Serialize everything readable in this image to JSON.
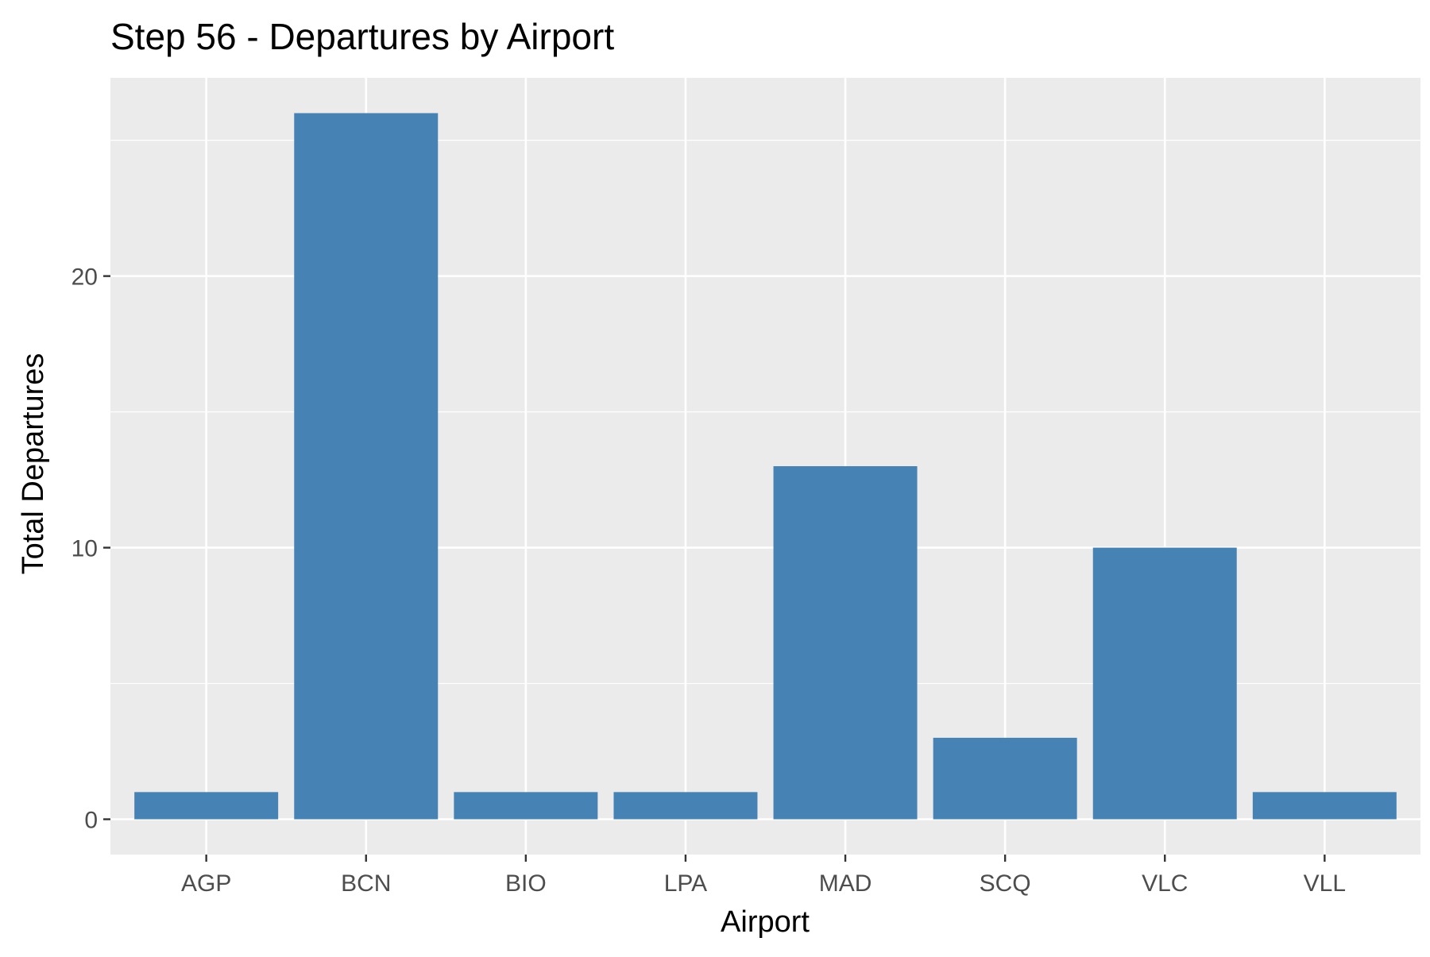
{
  "chart_data": {
    "type": "bar",
    "title": "Step 56 - Departures by Airport",
    "xlabel": "Airport",
    "ylabel": "Total Departures",
    "categories": [
      "AGP",
      "BCN",
      "BIO",
      "LPA",
      "MAD",
      "SCQ",
      "VLC",
      "VLL"
    ],
    "values": [
      1,
      26,
      1,
      1,
      13,
      3,
      10,
      1
    ],
    "ylim": [
      -1.3,
      27.3
    ],
    "yticks": [
      0,
      10,
      20
    ],
    "grid": true,
    "legend": "none",
    "colors": {
      "bar": "#4682B4",
      "panel": "#EBEBEB",
      "gridline": "#FFFFFF",
      "text": "#000000",
      "tick_text": "#4D4D4D",
      "tick_mark": "#333333"
    }
  }
}
